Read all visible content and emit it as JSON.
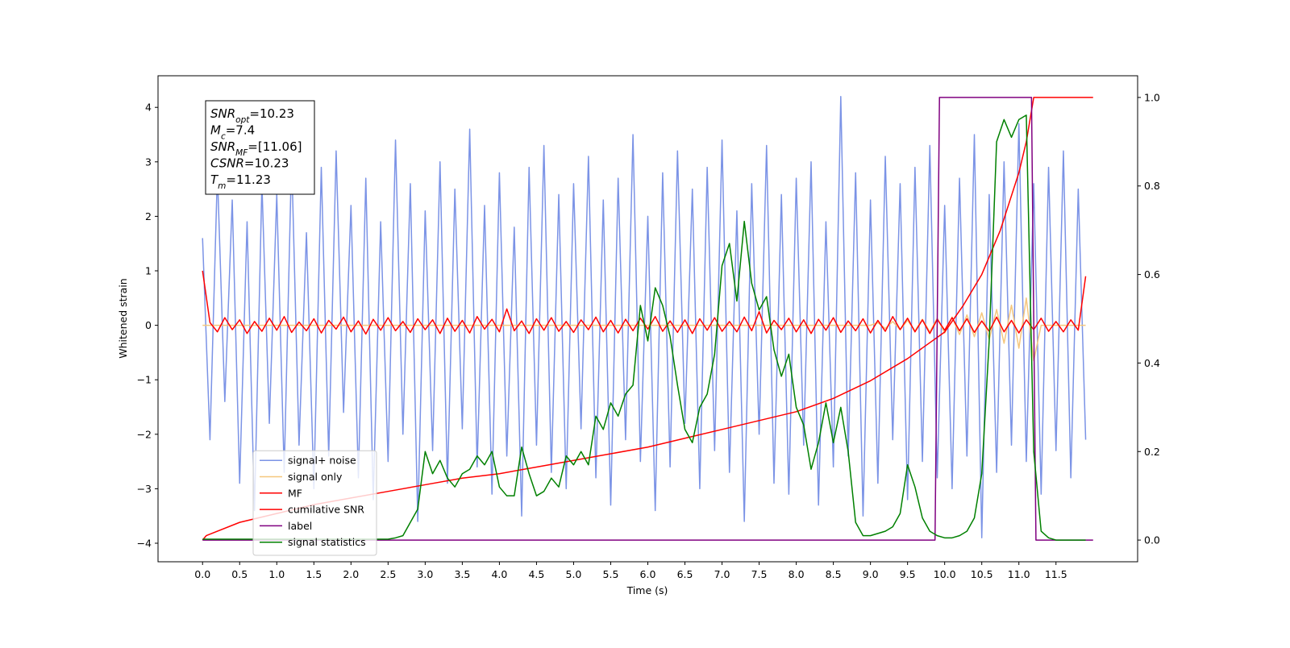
{
  "chart_data": {
    "type": "line",
    "x_label": "Time (s)",
    "y_label": "Whitened strain",
    "xlim": [
      -0.6,
      12.6
    ],
    "ylim": [
      -4.34,
      4.58
    ],
    "y2lim": [
      -0.049,
      1.049
    ],
    "xticks": [
      {
        "value": 0,
        "label": "0.0"
      },
      0.5,
      {
        "value": 1,
        "label": "1.0"
      },
      1.5,
      {
        "value": 2,
        "label": "2.0"
      },
      2.5,
      {
        "value": 3,
        "label": "3.0"
      },
      3.5,
      {
        "value": 4,
        "label": "4.0"
      },
      4.5,
      {
        "value": 5,
        "label": "5.0"
      },
      5.5,
      {
        "value": 6,
        "label": "6.0"
      },
      6.5,
      {
        "value": 7,
        "label": "7.0"
      },
      7.5,
      {
        "value": 8,
        "label": "8.0"
      },
      8.5,
      {
        "value": 9,
        "label": "9.0"
      },
      9.5,
      {
        "value": 10,
        "label": "10.0"
      },
      10.5,
      {
        "value": 11,
        "label": "11.0"
      },
      11.5
    ],
    "yticks": [
      {
        "value": -4,
        "label": "−4"
      },
      {
        "value": -3,
        "label": "−3"
      },
      {
        "value": -2,
        "label": "−2"
      },
      {
        "value": -1,
        "label": "−1"
      },
      0,
      1,
      2,
      3,
      4
    ],
    "y2ticks": [
      {
        "value": 0,
        "label": "0.0"
      },
      0.2,
      0.4,
      0.6,
      0.8,
      {
        "value": 1,
        "label": "1.0"
      }
    ],
    "legend": "lower left",
    "annotations": [
      {
        "symbol": "SNR",
        "sub": "opt",
        "text": "=10.23"
      },
      {
        "symbol": "M",
        "sub": "c",
        "text": "=7.4"
      },
      {
        "symbol": "SNR",
        "sub": "MF",
        "text": "=[11.06]"
      },
      {
        "symbol": "CSNR",
        "text": "=10.23"
      },
      {
        "symbol": "T",
        "sub": "m",
        "text": "=11.23"
      }
    ],
    "x": [
      0,
      0.1,
      0.2,
      0.3,
      0.4,
      0.5,
      0.6,
      0.7,
      0.8,
      0.9,
      1,
      1.1,
      1.2,
      1.3,
      1.4,
      1.5,
      1.6,
      1.7,
      1.8,
      1.9,
      2,
      2.1,
      2.2,
      2.3,
      2.4,
      2.5,
      2.6,
      2.7,
      2.8,
      2.9,
      3,
      3.1,
      3.2,
      3.3,
      3.4,
      3.5,
      3.6,
      3.7,
      3.8,
      3.9,
      4,
      4.1,
      4.2,
      4.3,
      4.4,
      4.5,
      4.6,
      4.7,
      4.8,
      4.9,
      5,
      5.1,
      5.2,
      5.3,
      5.4,
      5.5,
      5.6,
      5.7,
      5.8,
      5.9,
      6,
      6.1,
      6.2,
      6.3,
      6.4,
      6.5,
      6.6,
      6.7,
      6.8,
      6.9,
      7,
      7.1,
      7.2,
      7.3,
      7.4,
      7.5,
      7.6,
      7.7,
      7.8,
      7.9,
      8,
      8.1,
      8.2,
      8.3,
      8.4,
      8.5,
      8.6,
      8.7,
      8.8,
      8.9,
      9,
      9.1,
      9.2,
      9.3,
      9.4,
      9.5,
      9.6,
      9.7,
      9.8,
      9.9,
      10,
      10.1,
      10.2,
      10.3,
      10.4,
      10.5,
      10.6,
      10.7,
      10.8,
      10.9,
      11,
      11.1,
      11.2,
      11.3,
      11.4,
      11.5,
      11.6,
      11.7,
      11.8,
      11.9
    ],
    "series": [
      {
        "name": "signal+ noise",
        "color": "#7b93e6",
        "values": [
          1.6,
          -2.1,
          2.8,
          -1.4,
          2.3,
          -2.9,
          1.9,
          -3.4,
          2.6,
          -1.8,
          2.4,
          -2.7,
          3.1,
          -2.2,
          1.7,
          -3.0,
          2.9,
          -2.4,
          3.2,
          -1.6,
          2.2,
          -2.8,
          2.7,
          -3.2,
          1.9,
          -2.5,
          3.4,
          -2.0,
          2.6,
          -3.6,
          2.1,
          -2.3,
          3.0,
          -2.9,
          2.5,
          -1.9,
          3.6,
          -2.6,
          2.2,
          -3.1,
          2.8,
          -2.4,
          1.8,
          -3.5,
          2.9,
          -2.2,
          3.3,
          -2.7,
          2.4,
          -3.0,
          2.6,
          -1.9,
          3.1,
          -2.8,
          2.3,
          -3.3,
          2.7,
          -2.1,
          3.5,
          -2.5,
          2.0,
          -3.4,
          2.8,
          -2.6,
          3.2,
          -1.8,
          2.5,
          -3.0,
          2.9,
          -2.3,
          3.4,
          -2.7,
          2.1,
          -3.6,
          2.6,
          -2.0,
          3.3,
          -2.9,
          2.4,
          -3.1,
          2.7,
          -2.2,
          3.0,
          -3.3,
          1.9,
          -2.6,
          4.2,
          -2.4,
          2.8,
          -3.5,
          2.3,
          -2.9,
          3.1,
          -2.1,
          2.6,
          -3.2,
          2.9,
          -2.5,
          3.3,
          -2.8,
          2.2,
          -3.0,
          2.7,
          -2.4,
          3.5,
          -3.9,
          2.4,
          -2.7,
          3.0,
          -2.2,
          3.7,
          -2.5,
          2.6,
          -3.1,
          2.9,
          -2.3,
          3.2,
          -2.8,
          2.5,
          -2.1
        ]
      },
      {
        "name": "signal only",
        "color": "#f5c77e",
        "values": [
          0,
          0,
          0,
          0,
          0,
          0,
          0,
          0,
          0,
          0,
          0,
          0,
          0,
          0,
          0,
          0,
          0,
          0,
          0,
          0,
          0,
          0,
          0,
          0,
          0,
          0,
          0,
          0,
          0,
          0,
          0,
          0,
          0,
          0,
          0,
          0,
          0,
          0,
          0,
          0,
          0,
          0,
          0,
          0,
          0,
          0,
          0,
          0,
          0,
          0,
          0,
          0,
          0,
          0,
          0,
          0,
          0,
          0,
          0,
          0,
          0,
          0,
          0,
          0,
          0,
          0,
          0,
          0,
          0,
          0,
          0,
          0,
          0,
          0,
          0,
          0,
          0,
          0,
          0,
          0,
          0,
          0,
          0,
          0,
          0,
          0,
          0,
          0,
          0,
          0,
          0,
          0.05,
          -0.06,
          0.07,
          -0.08,
          0.09,
          -0.1,
          0.11,
          -0.12,
          0.13,
          -0.14,
          0.15,
          -0.17,
          0.19,
          -0.21,
          0.23,
          -0.26,
          0.29,
          -0.33,
          0.37,
          -0.42,
          0.5,
          -0.65,
          0,
          0,
          0,
          0,
          0,
          0,
          0
        ]
      },
      {
        "name": "MF",
        "color": "#ff0000",
        "values": [
          1.0,
          0.05,
          -0.12,
          0.14,
          -0.08,
          0.1,
          -0.15,
          0.07,
          -0.11,
          0.13,
          -0.09,
          0.16,
          -0.13,
          0.06,
          -0.1,
          0.12,
          -0.14,
          0.09,
          -0.07,
          0.15,
          -0.12,
          0.08,
          -0.16,
          0.11,
          -0.09,
          0.14,
          -0.1,
          0.07,
          -0.13,
          0.12,
          -0.08,
          0.1,
          -0.15,
          0.13,
          -0.11,
          0.09,
          -0.14,
          0.16,
          -0.07,
          0.11,
          -0.12,
          0.3,
          -0.1,
          0.08,
          -0.15,
          0.12,
          -0.09,
          0.14,
          -0.11,
          0.07,
          -0.13,
          0.1,
          -0.08,
          0.15,
          -0.12,
          0.09,
          -0.14,
          0.11,
          -0.1,
          0.13,
          -0.07,
          0.16,
          -0.11,
          0.08,
          -0.13,
          0.1,
          -0.15,
          0.12,
          -0.09,
          0.14,
          -0.11,
          0.07,
          -0.12,
          0.15,
          -0.1,
          0.25,
          -0.14,
          0.09,
          -0.08,
          0.13,
          -0.12,
          0.1,
          -0.15,
          0.11,
          -0.09,
          0.14,
          -0.13,
          0.08,
          -0.1,
          0.12,
          -0.14,
          0.09,
          -0.11,
          0.16,
          -0.08,
          0.13,
          -0.12,
          0.1,
          -0.15,
          0.11,
          -0.09,
          0.14,
          -0.1,
          0.12,
          -0.13,
          0.08,
          -0.11,
          0.15,
          -0.12,
          0.09,
          -0.14,
          0.1,
          -0.08,
          0.13,
          -0.11,
          0.07,
          -0.12,
          0.1,
          -0.09,
          0.9
        ]
      },
      {
        "name": "cumilative SNR",
        "color": "#ff0000",
        "axis": "y2",
        "x": [
          0,
          0.05,
          0.5,
          1,
          1.5,
          2,
          2.5,
          3,
          3.5,
          4,
          4.5,
          5,
          5.5,
          6,
          6.5,
          7,
          7.5,
          8,
          8.5,
          9,
          9.5,
          10,
          10.25,
          10.5,
          10.75,
          11,
          11.1,
          11.2,
          12.0
        ],
        "values": [
          0.0,
          0.01,
          0.04,
          0.06,
          0.08,
          0.095,
          0.11,
          0.125,
          0.14,
          0.15,
          0.165,
          0.18,
          0.195,
          0.21,
          0.23,
          0.25,
          0.27,
          0.29,
          0.32,
          0.36,
          0.41,
          0.47,
          0.53,
          0.6,
          0.7,
          0.83,
          0.9,
          1.0,
          1.0
        ]
      },
      {
        "name": "label",
        "color": "#800080",
        "axis": "y2",
        "x": [
          0,
          9.87,
          9.93,
          11.17,
          11.23,
          12.0
        ],
        "values": [
          0,
          0,
          1,
          1,
          0,
          0
        ]
      },
      {
        "name": "signal statistics",
        "color": "#008000",
        "axis": "y2",
        "values": [
          0.002,
          0.002,
          0.002,
          0.002,
          0.002,
          0.002,
          0.002,
          0.002,
          0.002,
          0.002,
          0.002,
          0.002,
          0.002,
          0.002,
          0.002,
          0.002,
          0.002,
          0.002,
          0.002,
          0.002,
          0.002,
          0.002,
          0.002,
          0.002,
          0.002,
          0.002,
          0.005,
          0.01,
          0.04,
          0.07,
          0.2,
          0.15,
          0.18,
          0.14,
          0.12,
          0.15,
          0.16,
          0.19,
          0.17,
          0.2,
          0.12,
          0.1,
          0.1,
          0.21,
          0.15,
          0.1,
          0.11,
          0.14,
          0.12,
          0.19,
          0.17,
          0.2,
          0.17,
          0.28,
          0.25,
          0.31,
          0.28,
          0.33,
          0.35,
          0.53,
          0.45,
          0.57,
          0.53,
          0.46,
          0.35,
          0.25,
          0.22,
          0.3,
          0.33,
          0.42,
          0.62,
          0.67,
          0.54,
          0.72,
          0.58,
          0.52,
          0.55,
          0.43,
          0.37,
          0.42,
          0.3,
          0.26,
          0.16,
          0.22,
          0.31,
          0.22,
          0.3,
          0.2,
          0.04,
          0.01,
          0.01,
          0.015,
          0.02,
          0.03,
          0.06,
          0.17,
          0.12,
          0.05,
          0.02,
          0.01,
          0.005,
          0.005,
          0.01,
          0.02,
          0.05,
          0.15,
          0.45,
          0.9,
          0.95,
          0.91,
          0.95,
          0.96,
          0.2,
          0.02,
          0.005,
          0,
          0,
          0,
          0,
          0
        ]
      }
    ]
  }
}
